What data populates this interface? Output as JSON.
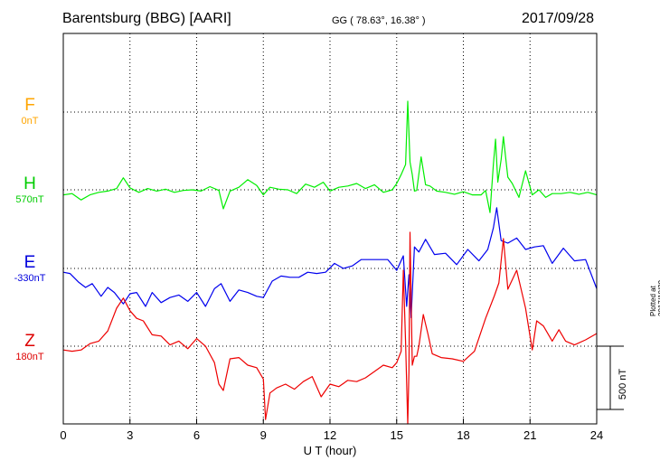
{
  "header": {
    "title": "Barentsburg (BBG)  [AARI]",
    "coords": "GG ( 78.63°,  16.38° )",
    "date": "2017/09/28"
  },
  "components": [
    {
      "letter": "F",
      "base": "0nT",
      "color": "#ffa500"
    },
    {
      "letter": "H",
      "base": "570nT",
      "color": "#00cc00"
    },
    {
      "letter": "E",
      "base": "-330nT",
      "color": "#0000dd"
    },
    {
      "letter": "Z",
      "base": "180nT",
      "color": "#dd0000"
    }
  ],
  "plotted_note": "Plotted at 2017/10/29 01:33 UT",
  "chart_data": {
    "type": "line",
    "title": "Barentsburg (BBG)  [AARI]",
    "xlabel": "U T (hour)",
    "xlim": [
      0,
      24
    ],
    "xticks": [
      0,
      3,
      6,
      9,
      12,
      15,
      18,
      21,
      24
    ],
    "scale_bar_label": "500 nT",
    "scale_bar_nT": 500,
    "offset_range_nT": [
      -400,
      500
    ],
    "grid": true,
    "series": [
      {
        "name": "H",
        "color": "#00ee00",
        "baseline_nT": 570,
        "x": [
          0,
          0.4,
          0.8,
          1.2,
          1.6,
          2.0,
          2.4,
          2.7,
          3.0,
          3.4,
          3.8,
          4.2,
          4.6,
          5.0,
          5.4,
          5.8,
          6.2,
          6.6,
          7.0,
          7.2,
          7.5,
          7.9,
          8.3,
          8.7,
          9.0,
          9.3,
          9.7,
          10.1,
          10.5,
          10.9,
          11.3,
          11.7,
          12.0,
          12.4,
          12.8,
          13.2,
          13.6,
          14.0,
          14.4,
          14.8,
          15.0,
          15.2,
          15.4,
          15.5,
          15.6,
          15.7,
          15.8,
          15.9,
          16.1,
          16.3,
          16.5,
          16.8,
          17.2,
          17.6,
          18.0,
          18.4,
          18.8,
          19.0,
          19.2,
          19.35,
          19.45,
          19.55,
          19.7,
          19.8,
          19.9,
          20.0,
          20.2,
          20.5,
          20.8,
          21.1,
          21.4,
          21.7,
          22.0,
          22.4,
          22.8,
          23.2,
          23.6,
          24.0
        ],
        "values": [
          -40,
          -30,
          -80,
          -40,
          -20,
          -10,
          10,
          95,
          15,
          -20,
          10,
          -10,
          5,
          -20,
          -5,
          0,
          -10,
          25,
          -5,
          -150,
          -10,
          20,
          80,
          35,
          -40,
          20,
          5,
          0,
          -30,
          45,
          20,
          60,
          -10,
          20,
          30,
          50,
          10,
          40,
          -20,
          0,
          50,
          120,
          200,
          700,
          220,
          120,
          -10,
          -5,
          260,
          40,
          30,
          -10,
          -20,
          -35,
          -15,
          -40,
          -40,
          -5,
          -180,
          200,
          400,
          60,
          240,
          420,
          260,
          100,
          50,
          -60,
          150,
          -40,
          0,
          -60,
          -30,
          -30,
          -20,
          -35,
          -20,
          -40
        ]
      },
      {
        "name": "E",
        "color": "#0000ee",
        "baseline_nT": -330,
        "x": [
          0,
          0.3,
          0.7,
          1.0,
          1.3,
          1.7,
          2.0,
          2.3,
          2.7,
          3.0,
          3.3,
          3.7,
          4.0,
          4.4,
          4.8,
          5.2,
          5.6,
          6.0,
          6.4,
          6.8,
          7.1,
          7.5,
          7.9,
          8.3,
          8.7,
          9.0,
          9.4,
          9.8,
          10.2,
          10.6,
          11.0,
          11.4,
          11.8,
          12.2,
          12.6,
          13.0,
          13.4,
          13.8,
          14.2,
          14.6,
          15.0,
          15.3,
          15.45,
          15.55,
          15.65,
          15.8,
          16.0,
          16.3,
          16.7,
          17.2,
          17.7,
          18.2,
          18.7,
          19.1,
          19.35,
          19.5,
          19.7,
          20.0,
          20.4,
          20.8,
          21.2,
          21.6,
          22.0,
          22.5,
          23.0,
          23.5,
          24.0
        ],
        "values": [
          -30,
          -40,
          -110,
          -150,
          -120,
          -220,
          -150,
          -190,
          -280,
          -200,
          -190,
          -300,
          -190,
          -270,
          -230,
          -210,
          -260,
          -190,
          -300,
          -160,
          -120,
          -260,
          -170,
          -190,
          -220,
          -230,
          -100,
          -60,
          -70,
          -70,
          -30,
          -40,
          -30,
          40,
          0,
          20,
          70,
          70,
          70,
          70,
          -15,
          100,
          -300,
          -50,
          -390,
          170,
          130,
          230,
          110,
          120,
          30,
          150,
          60,
          150,
          320,
          480,
          220,
          200,
          240,
          150,
          170,
          180,
          40,
          160,
          60,
          70,
          -160
        ]
      },
      {
        "name": "Z",
        "color": "#ee0000",
        "baseline_nT": 180,
        "x": [
          0,
          0.4,
          0.8,
          1.2,
          1.6,
          2.0,
          2.4,
          2.7,
          3.0,
          3.3,
          3.6,
          4.0,
          4.4,
          4.8,
          5.2,
          5.6,
          6.0,
          6.4,
          6.8,
          7.0,
          7.2,
          7.5,
          7.9,
          8.3,
          8.7,
          9.0,
          9.1,
          9.3,
          9.6,
          10.0,
          10.4,
          10.8,
          11.2,
          11.6,
          12.0,
          12.4,
          12.8,
          13.2,
          13.6,
          14.0,
          14.4,
          14.8,
          15.0,
          15.2,
          15.3,
          15.4,
          15.5,
          15.55,
          15.6,
          15.7,
          15.8,
          15.9,
          16.0,
          16.2,
          16.4,
          16.6,
          17.0,
          17.5,
          18.0,
          18.5,
          19.0,
          19.4,
          19.6,
          19.8,
          20.0,
          20.4,
          20.8,
          21.1,
          21.3,
          21.6,
          22.0,
          22.3,
          22.6,
          23.0,
          23.5,
          24.0
        ],
        "values": [
          -30,
          -40,
          -30,
          20,
          40,
          120,
          300,
          380,
          280,
          220,
          200,
          90,
          80,
          10,
          40,
          -20,
          60,
          0,
          -130,
          -300,
          -350,
          -100,
          -90,
          -150,
          -170,
          -260,
          -580,
          -370,
          -330,
          -300,
          -340,
          -280,
          -240,
          -400,
          -300,
          -320,
          -270,
          -280,
          -250,
          -200,
          -150,
          -170,
          -130,
          -40,
          600,
          30,
          -900,
          -200,
          900,
          -150,
          -80,
          -80,
          0,
          250,
          100,
          -60,
          -90,
          -100,
          -120,
          -40,
          220,
          400,
          500,
          850,
          450,
          600,
          300,
          -30,
          200,
          160,
          40,
          130,
          40,
          10,
          50,
          100
        ]
      }
    ]
  }
}
